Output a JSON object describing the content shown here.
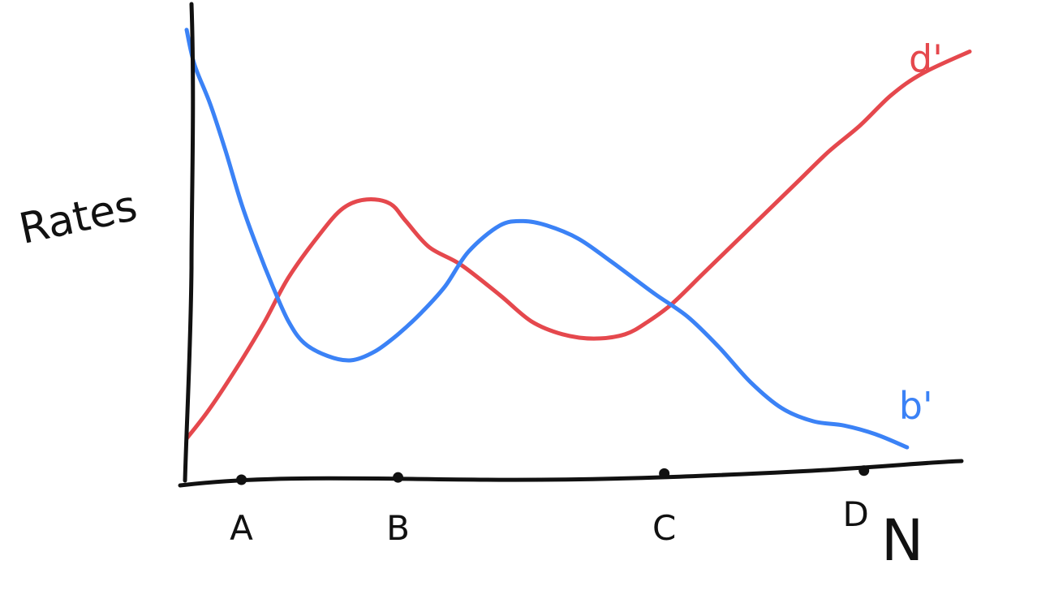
{
  "chart_data": {
    "type": "line",
    "title": "",
    "xlabel": "N",
    "ylabel": "Rates",
    "xlim": [
      0,
      100
    ],
    "ylim": [
      0,
      100
    ],
    "grid": false,
    "legend": "inline at line ends",
    "x_markers": [
      {
        "label": "A",
        "x": 7
      },
      {
        "label": "B",
        "x": 27
      },
      {
        "label": "C",
        "x": 61
      },
      {
        "label": "D",
        "x": 86.5
      }
    ],
    "series": [
      {
        "name": "d'",
        "color": "#e5484d",
        "x": [
          0,
          3,
          7,
          10,
          13,
          17,
          20,
          23,
          26,
          28,
          31,
          35,
          40,
          44,
          48,
          52,
          56,
          59,
          62,
          66,
          70,
          74,
          78,
          82,
          86,
          90,
          94,
          100
        ],
        "y": [
          13,
          20,
          31,
          40,
          50,
          60,
          66,
          68,
          67,
          63,
          57,
          53,
          46,
          40,
          37,
          36,
          37,
          40,
          44,
          51,
          58,
          65,
          72,
          79,
          85,
          92,
          97,
          102
        ]
      },
      {
        "name": "b'",
        "color": "#3b82f6",
        "x": [
          0,
          1,
          3,
          5,
          7,
          9,
          11,
          13,
          15,
          18,
          21,
          24,
          27,
          30,
          33,
          36,
          40,
          43,
          46,
          50,
          54,
          57,
          60,
          64,
          68,
          72,
          76,
          80,
          84,
          88,
          92
        ],
        "y": [
          107,
          99,
          90,
          79,
          67,
          57,
          48,
          40,
          35,
          32,
          31,
          33,
          37,
          42,
          48,
          56,
          62,
          63,
          62,
          59,
          54,
          50,
          46,
          41,
          34,
          26,
          20,
          17,
          16,
          14,
          11
        ]
      }
    ]
  }
}
